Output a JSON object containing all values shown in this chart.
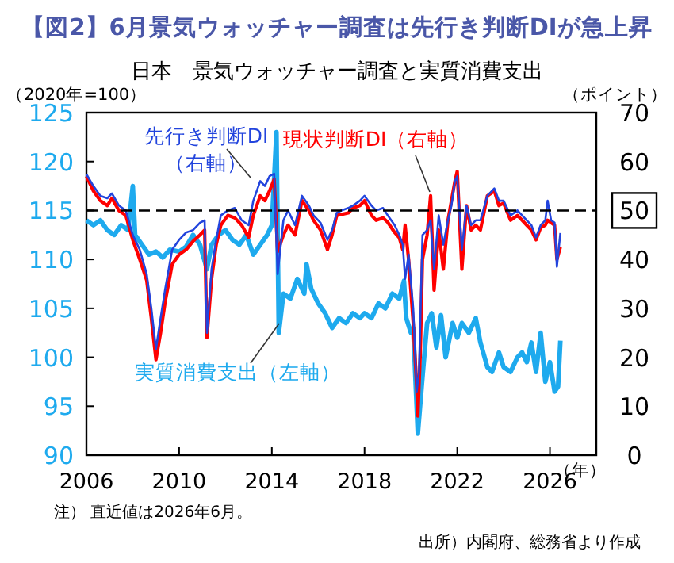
{
  "chart_data": {
    "type": "line",
    "title": "【図2】6月景気ウォッチャー調査は先行き判断DIが急上昇",
    "subtitle": "日本　景気ウォッチャー調査と実質消費支出",
    "ylabel": "（2020年=100）",
    "y2label": "（ポイント）",
    "xlabel": "（年）",
    "xlim": [
      2006,
      2028
    ],
    "xticks": [
      2006,
      2010,
      2014,
      2018,
      2022,
      2026
    ],
    "ylim": [
      90,
      125
    ],
    "yticks": [
      90,
      95,
      100,
      105,
      110,
      115,
      120,
      125
    ],
    "y2lim": [
      0,
      70
    ],
    "y2ticks": [
      0,
      10,
      20,
      30,
      40,
      50,
      60,
      70
    ],
    "ref_lines": [
      {
        "axis": "y2",
        "value": 50,
        "line_style": "dashed",
        "color": "#000000"
      }
    ],
    "annotations": [
      "注） 直近値は2026年6月。",
      "出所）内閣府、総務省より作成"
    ],
    "series": [
      {
        "name": "実質消費支出（左軸）",
        "color": "#1eaaee",
        "axis": "y",
        "x": [
          2006.0,
          2006.3,
          2006.6,
          2006.9,
          2007.2,
          2007.5,
          2007.8,
          2008.0,
          2008.1,
          2008.4,
          2008.7,
          2009.0,
          2009.3,
          2009.6,
          2010.0,
          2010.3,
          2010.6,
          2010.9,
          2011.2,
          2011.4,
          2011.7,
          2012.0,
          2012.3,
          2012.6,
          2012.9,
          2013.2,
          2013.5,
          2013.8,
          2014.0,
          2014.2,
          2014.3,
          2014.5,
          2014.8,
          2015.1,
          2015.4,
          2015.5,
          2015.7,
          2016.0,
          2016.3,
          2016.6,
          2016.9,
          2017.2,
          2017.5,
          2017.8,
          2018.0,
          2018.3,
          2018.6,
          2018.9,
          2019.2,
          2019.5,
          2019.7,
          2019.8,
          2020.0,
          2020.1,
          2020.3,
          2020.5,
          2020.7,
          2020.9,
          2021.1,
          2021.3,
          2021.5,
          2021.8,
          2022.0,
          2022.2,
          2022.5,
          2022.8,
          2023.0,
          2023.3,
          2023.5,
          2023.8,
          2024.0,
          2024.3,
          2024.6,
          2024.8,
          2025.0,
          2025.2,
          2025.4,
          2025.6,
          2025.8,
          2026.0,
          2026.2,
          2026.35,
          2026.45
        ],
        "values": [
          114,
          113.5,
          114,
          113,
          112.5,
          113.5,
          113,
          117.5,
          112.5,
          111.5,
          110.5,
          110.8,
          110.2,
          111,
          110.8,
          111.3,
          112.5,
          111.5,
          109,
          111.5,
          112.5,
          113,
          112,
          111.5,
          112.5,
          110.5,
          111.5,
          112.5,
          113.5,
          123,
          102.5,
          106.5,
          106,
          108,
          106.5,
          109.5,
          107,
          105.5,
          104.5,
          103,
          104,
          103.5,
          104.5,
          104,
          104.5,
          104,
          105.5,
          105,
          106.5,
          106,
          107.8,
          104,
          102.5,
          103,
          92.2,
          98,
          103.5,
          104.5,
          101,
          104.3,
          100,
          103.5,
          102,
          103.5,
          102.5,
          104,
          101.5,
          99,
          98.5,
          100.5,
          99,
          98.5,
          100,
          100.5,
          99.5,
          101.5,
          98.5,
          102.5,
          97.5,
          99.5,
          96.5,
          97,
          101.7
        ]
      },
      {
        "name": "現状判断DI（右軸）",
        "color": "#ff0000",
        "axis": "y2",
        "x": [
          2006.0,
          2006.3,
          2006.6,
          2006.9,
          2007.1,
          2007.4,
          2007.7,
          2008.0,
          2008.3,
          2008.6,
          2008.8,
          2009.0,
          2009.2,
          2009.4,
          2009.7,
          2010.0,
          2010.3,
          2010.6,
          2010.9,
          2011.1,
          2011.2,
          2011.4,
          2011.6,
          2011.8,
          2012.1,
          2012.4,
          2012.7,
          2013.0,
          2013.2,
          2013.5,
          2013.7,
          2013.9,
          2014.1,
          2014.25,
          2014.5,
          2014.7,
          2015.0,
          2015.3,
          2015.6,
          2015.8,
          2016.1,
          2016.4,
          2016.6,
          2016.8,
          2017.0,
          2017.3,
          2017.5,
          2017.8,
          2018.0,
          2018.3,
          2018.5,
          2018.8,
          2019.0,
          2019.3,
          2019.5,
          2019.65,
          2019.75,
          2019.9,
          2020.1,
          2020.25,
          2020.3,
          2020.4,
          2020.5,
          2020.7,
          2020.85,
          2021.0,
          2021.2,
          2021.4,
          2021.6,
          2021.75,
          2021.9,
          2022.0,
          2022.2,
          2022.4,
          2022.6,
          2022.8,
          2023.0,
          2023.3,
          2023.6,
          2023.8,
          2024.0,
          2024.3,
          2024.6,
          2024.8,
          2025.0,
          2025.2,
          2025.4,
          2025.6,
          2025.8,
          2025.9,
          2026.05,
          2026.2,
          2026.3,
          2026.45
        ],
        "values": [
          57,
          54,
          52,
          51,
          52.5,
          50,
          49,
          44,
          40,
          35.7,
          28,
          19.5,
          25,
          31.4,
          39,
          41,
          42,
          43.7,
          45,
          46,
          24,
          36,
          43,
          47,
          49,
          48.5,
          47,
          44.5,
          49,
          53,
          52,
          54,
          56.4,
          41.6,
          45,
          47,
          45,
          52,
          50,
          48,
          46,
          42,
          45,
          49,
          49.2,
          49.5,
          50.5,
          51,
          52,
          49,
          48,
          48.5,
          47.6,
          45.5,
          44.4,
          42,
          47,
          40,
          27,
          14,
          8,
          20,
          40,
          45,
          53,
          33.7,
          46,
          38,
          48,
          52,
          56,
          58,
          38,
          51,
          46,
          47,
          46,
          53,
          54,
          51,
          51.5,
          48,
          49,
          48,
          47,
          46,
          44,
          46.5,
          47,
          48,
          47.5,
          47,
          40,
          42.5
        ]
      },
      {
        "name": "先行き判断DI（右軸）",
        "color": "#2244dd",
        "axis": "y2",
        "x": [
          2006.0,
          2006.3,
          2006.6,
          2006.9,
          2007.1,
          2007.4,
          2007.7,
          2008.0,
          2008.3,
          2008.6,
          2008.8,
          2009.0,
          2009.2,
          2009.4,
          2009.7,
          2010.0,
          2010.3,
          2010.6,
          2010.9,
          2011.1,
          2011.2,
          2011.4,
          2011.6,
          2011.8,
          2012.1,
          2012.4,
          2012.7,
          2013.0,
          2013.2,
          2013.5,
          2013.7,
          2013.9,
          2014.1,
          2014.25,
          2014.5,
          2014.7,
          2015.0,
          2015.3,
          2015.6,
          2015.8,
          2016.1,
          2016.4,
          2016.6,
          2016.8,
          2017.0,
          2017.3,
          2017.5,
          2017.8,
          2018.0,
          2018.3,
          2018.5,
          2018.8,
          2019.0,
          2019.3,
          2019.5,
          2019.65,
          2019.75,
          2019.9,
          2020.1,
          2020.25,
          2020.35,
          2020.5,
          2020.7,
          2020.85,
          2021.0,
          2021.2,
          2021.4,
          2021.6,
          2021.75,
          2021.9,
          2022.0,
          2022.2,
          2022.4,
          2022.6,
          2022.8,
          2023.0,
          2023.3,
          2023.6,
          2023.8,
          2024.0,
          2024.3,
          2024.6,
          2024.8,
          2025.0,
          2025.2,
          2025.4,
          2025.6,
          2025.8,
          2025.9,
          2026.05,
          2026.2,
          2026.3,
          2026.45
        ],
        "values": [
          57.4,
          55,
          53,
          52.5,
          53.5,
          51,
          50,
          45,
          42,
          37,
          30,
          21.7,
          28,
          34,
          42,
          44,
          45.5,
          46,
          47.5,
          48,
          25,
          38,
          44,
          49,
          50,
          50.5,
          48,
          47,
          52,
          56,
          55,
          57,
          57.5,
          37,
          48,
          50,
          47,
          53,
          51,
          49,
          47.5,
          44,
          46,
          49.5,
          50,
          50.5,
          51,
          52,
          53,
          51,
          50,
          50.5,
          49,
          47,
          45,
          43,
          36,
          41,
          30,
          13,
          17,
          45,
          46,
          48,
          38,
          49,
          43,
          48,
          51,
          56,
          57,
          42,
          51,
          47,
          48,
          48,
          53,
          54.5,
          52,
          52,
          49,
          50,
          49,
          48,
          47,
          44.5,
          47,
          48,
          52,
          48,
          47.5,
          38.5,
          45.4
        ]
      }
    ]
  }
}
